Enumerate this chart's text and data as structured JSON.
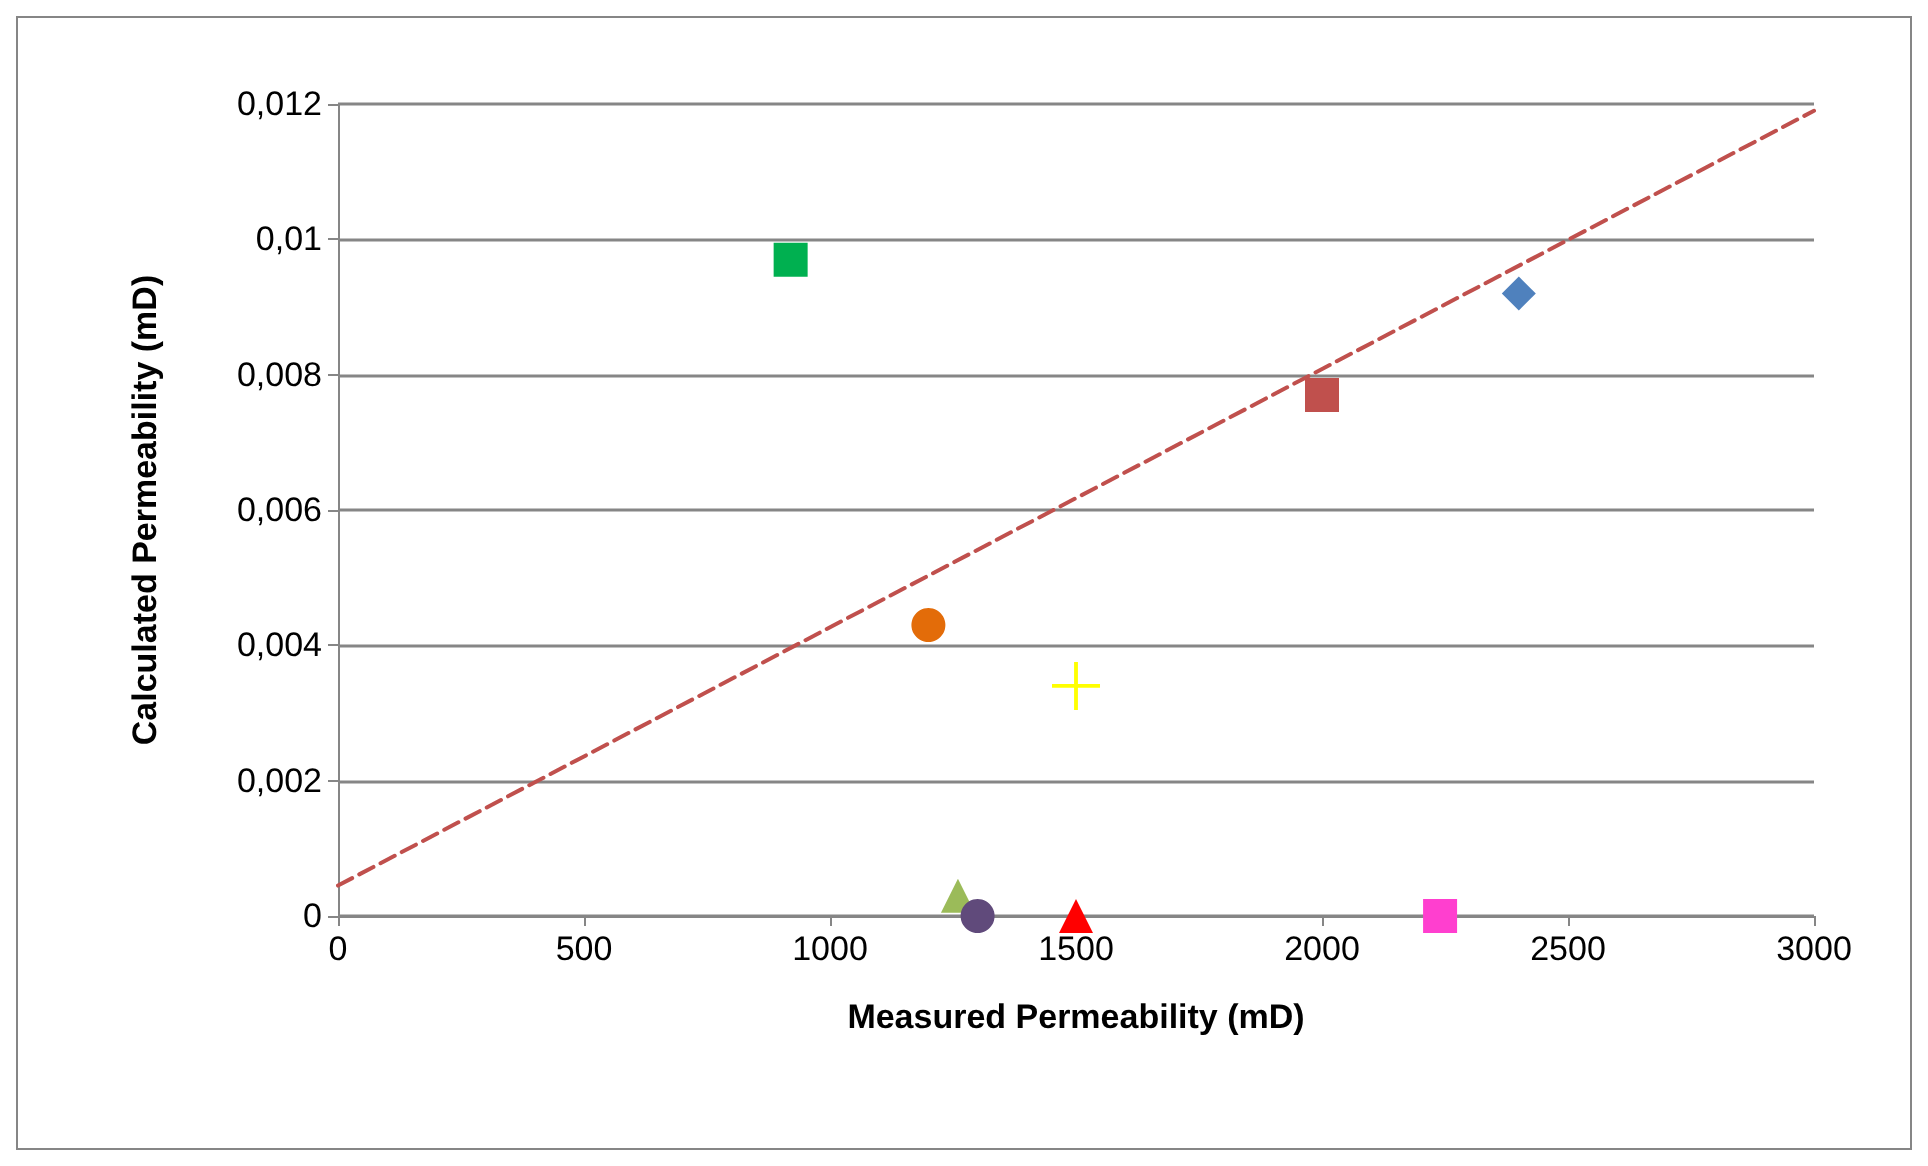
{
  "chart_data": {
    "type": "scatter",
    "xlabel": "Measured Permeability (mD)",
    "ylabel": "Calculated Permeability (mD)",
    "xlim": [
      0,
      3000
    ],
    "xticks": [
      0,
      500,
      1000,
      1500,
      2000,
      2500,
      3000
    ],
    "ylim": [
      0,
      0.012
    ],
    "yticks": [
      0,
      {
        "value": 0.002,
        "label": "0,002"
      },
      {
        "value": 0.004,
        "label": "0,004"
      },
      {
        "value": 0.006,
        "label": "0,006"
      },
      {
        "value": 0.008,
        "label": "0,008"
      },
      {
        "value": 0.01,
        "label": "0,01"
      },
      {
        "value": 0.012,
        "label": "0,012"
      }
    ],
    "grid": "y",
    "series": [
      {
        "color": "#4f81bd",
        "marker": "diamond",
        "x": [
          2400
        ],
        "values": [
          0.0092
        ]
      },
      {
        "color": "#c0504d",
        "marker": "square",
        "x": [
          2000
        ],
        "values": [
          0.0077
        ]
      },
      {
        "color": "#00b050",
        "marker": "square",
        "x": [
          920
        ],
        "values": [
          0.0097
        ]
      },
      {
        "color": "#e36c09",
        "marker": "circle",
        "x": [
          1200
        ],
        "values": [
          0.0043
        ]
      },
      {
        "color": "#ffff00",
        "marker": "cross",
        "x": [
          1500
        ],
        "values": [
          0.0034
        ]
      },
      {
        "color": "#9bbb59",
        "marker": "triangle",
        "x": [
          1260
        ],
        "values": [
          0.0003
        ]
      },
      {
        "color": "#604a7b",
        "marker": "circle",
        "x": [
          1300
        ],
        "values": [
          0
        ]
      },
      {
        "color": "#ff0000",
        "marker": "triangle",
        "x": [
          1500
        ],
        "values": [
          0
        ]
      },
      {
        "color": "#ff3fcf",
        "marker": "square",
        "x": [
          2240
        ],
        "values": [
          0
        ]
      },
      {
        "type": "line",
        "color": "#c0504d",
        "line_style": "dashed",
        "marker": "none",
        "x": [
          0,
          3000
        ],
        "values": [
          0.00045,
          0.0119
        ]
      }
    ]
  }
}
